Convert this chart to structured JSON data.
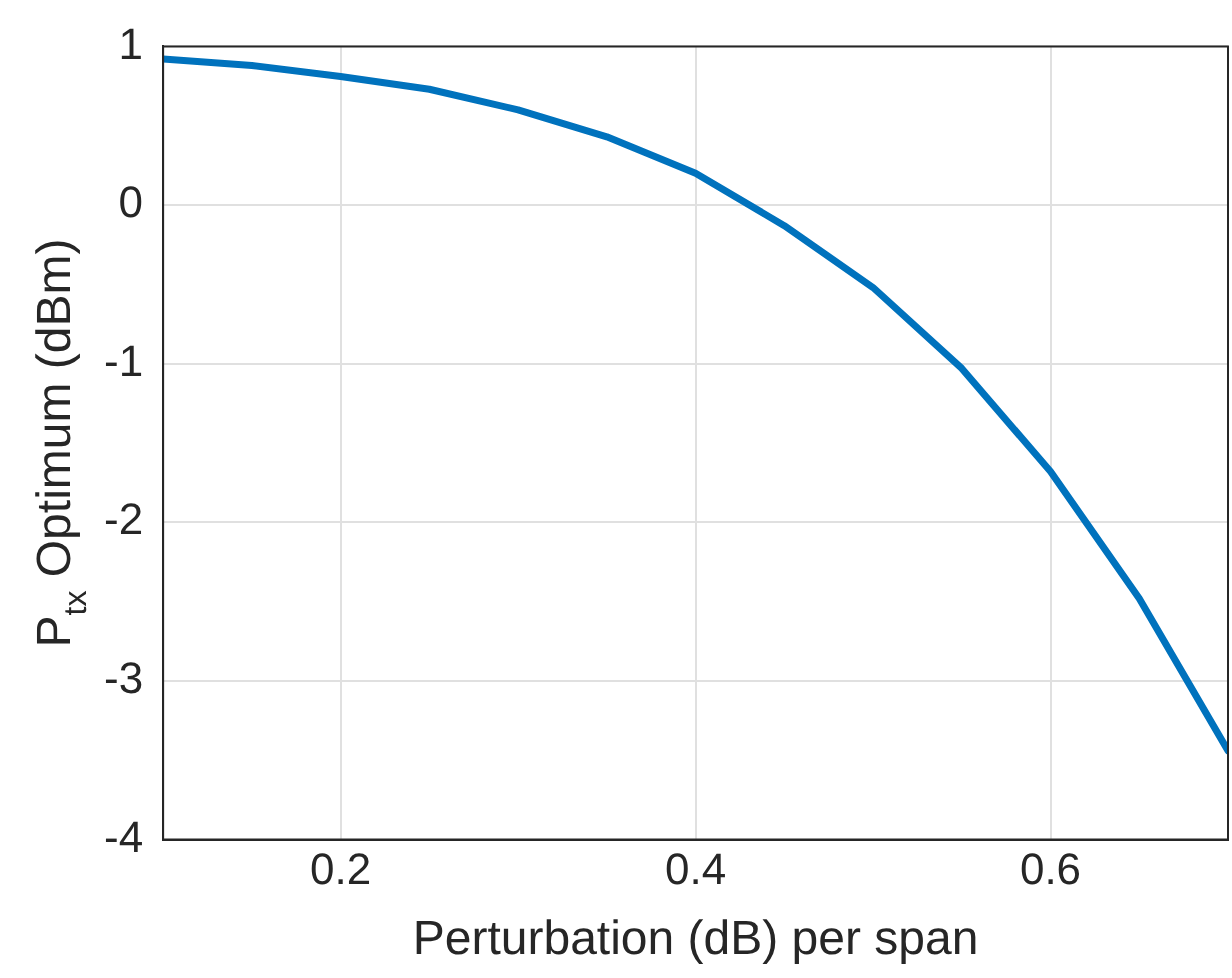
{
  "chart_data": {
    "type": "line",
    "xlabel": "Perturbation (dB) per span",
    "ylabel": "P$_{tx}$ Optimum (dBm)",
    "x": [
      0.1,
      0.15,
      0.2,
      0.25,
      0.3,
      0.35,
      0.4,
      0.45,
      0.5,
      0.55,
      0.6,
      0.65,
      0.7
    ],
    "series": [
      {
        "color": "#0072bd",
        "values": [
          0.92,
          0.88,
          0.81,
          0.73,
          0.6,
          0.43,
          0.2,
          -0.13,
          -0.52,
          -1.03,
          -1.68,
          -2.48,
          -3.44
        ]
      }
    ],
    "xlim": [
      0.1,
      0.7
    ],
    "xticks": [
      0.2,
      0.4,
      0.6
    ],
    "ylim": [
      -4,
      1
    ],
    "yticks": [
      -4,
      -3,
      -2,
      -1,
      0,
      1
    ],
    "grid": true,
    "legend": false,
    "marker": "none",
    "line_style": "solid"
  }
}
